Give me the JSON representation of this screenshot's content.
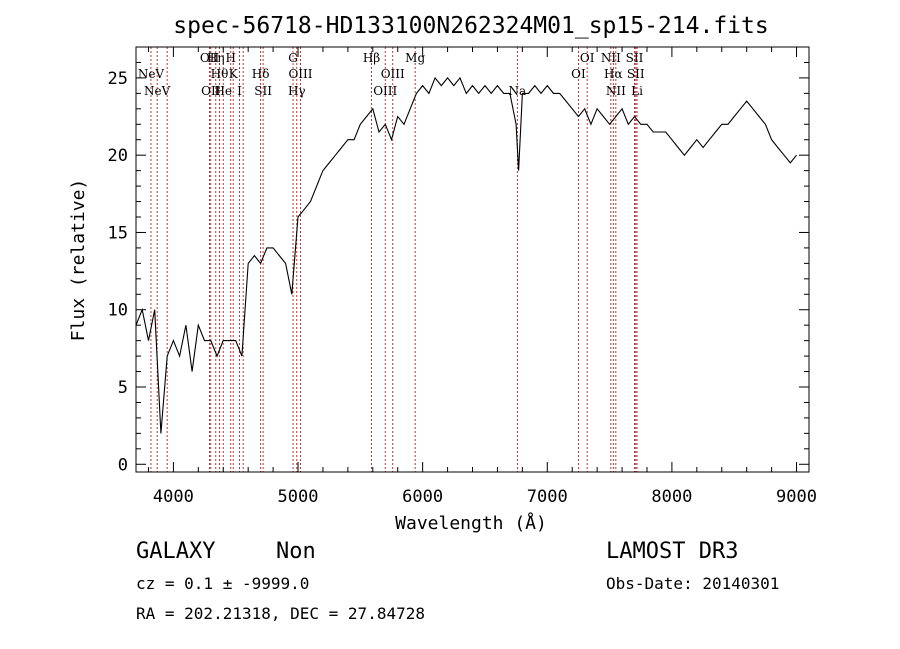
{
  "chart_data": {
    "type": "line",
    "title": "spec-56718-HD133100N262324M01_sp15-214.fits",
    "xlabel": "Wavelength (Å)",
    "ylabel": "Flux (relative)",
    "xlim": [
      3700,
      9100
    ],
    "ylim": [
      -0.5,
      27
    ],
    "x_ticks": [
      4000,
      5000,
      6000,
      7000,
      8000,
      9000
    ],
    "y_ticks": [
      0,
      5,
      10,
      15,
      20,
      25
    ],
    "grid": false,
    "series": [
      {
        "x": [
          3700,
          3750,
          3800,
          3850,
          3900,
          3950,
          4000,
          4050,
          4100,
          4150,
          4200,
          4250,
          4300,
          4350,
          4400,
          4450,
          4500,
          4550,
          4600,
          4650,
          4700,
          4750,
          4800,
          4850,
          4900,
          4950,
          5000,
          5050,
          5100,
          5150,
          5200,
          5250,
          5300,
          5350,
          5400,
          5450,
          5500,
          5550,
          5600,
          5650,
          5700,
          5750,
          5800,
          5850,
          5900,
          5950,
          6000,
          6050,
          6100,
          6150,
          6200,
          6250,
          6300,
          6350,
          6400,
          6450,
          6500,
          6550,
          6600,
          6650,
          6700,
          6750,
          6770,
          6800,
          6850,
          6900,
          6950,
          7000,
          7050,
          7100,
          7150,
          7200,
          7250,
          7300,
          7350,
          7400,
          7450,
          7500,
          7550,
          7600,
          7650,
          7700,
          7750,
          7800,
          7850,
          7900,
          7950,
          8000,
          8050,
          8100,
          8150,
          8200,
          8250,
          8300,
          8350,
          8400,
          8450,
          8500,
          8550,
          8600,
          8650,
          8700,
          8750,
          8800,
          8850,
          8900,
          8950,
          9000
        ],
        "values": [
          9,
          10,
          8,
          10,
          2,
          7,
          8,
          7,
          9,
          6,
          9,
          8,
          8,
          7,
          8,
          8,
          8,
          7,
          13,
          13.5,
          13,
          14,
          14,
          13.5,
          13,
          11,
          16,
          16.5,
          17,
          18,
          19,
          19.5,
          20,
          20.5,
          21,
          21,
          22,
          22.5,
          23,
          21.5,
          22,
          21,
          22.5,
          22,
          23,
          24,
          24.5,
          24,
          25,
          24.5,
          25,
          24.5,
          25,
          24,
          24.5,
          24,
          24.5,
          24,
          24.5,
          24,
          24,
          22,
          19,
          24,
          24,
          24.5,
          24,
          24.5,
          24,
          24,
          23.5,
          23,
          22.5,
          23,
          22,
          23,
          22.5,
          22,
          22.5,
          23,
          22,
          22.5,
          22,
          22,
          21.5,
          21.5,
          21.5,
          21,
          20.5,
          20,
          20.5,
          21,
          20.5,
          21,
          21.5,
          22,
          22,
          22.5,
          23,
          23.5,
          23,
          22.5,
          22,
          21,
          20.5,
          20,
          19.5,
          20
        ]
      }
    ],
    "lines": [
      {
        "x": 3820,
        "label": "NeV",
        "row": 1
      },
      {
        "x": 3870,
        "label": "NeV",
        "row": 2
      },
      {
        "x": 3950,
        "label": "",
        "row": 0
      },
      {
        "x": 4290,
        "label": "OII",
        "row": 0
      },
      {
        "x": 4300,
        "label": "OII",
        "row": 2
      },
      {
        "x": 4340,
        "label": "Hη",
        "row": 0
      },
      {
        "x": 4370,
        "label": "Hθ",
        "row": 1
      },
      {
        "x": 4400,
        "label": "He",
        "row": 2
      },
      {
        "x": 4460,
        "label": "H",
        "row": 0
      },
      {
        "x": 4480,
        "label": "K",
        "row": 1
      },
      {
        "x": 4530,
        "label": "I",
        "row": 2
      },
      {
        "x": 4560,
        "label": "",
        "row": 0
      },
      {
        "x": 4700,
        "label": "Hδ",
        "row": 1
      },
      {
        "x": 4720,
        "label": "SII",
        "row": 2
      },
      {
        "x": 4960,
        "label": "G",
        "row": 0
      },
      {
        "x": 4990,
        "label": "Hγ",
        "row": 2
      },
      {
        "x": 5020,
        "label": "OIII",
        "row": 1
      },
      {
        "x": 5590,
        "label": "Hβ",
        "row": 0
      },
      {
        "x": 5700,
        "label": "OIII",
        "row": 2
      },
      {
        "x": 5760,
        "label": "OIII",
        "row": 1
      },
      {
        "x": 5940,
        "label": "Mg",
        "row": 0
      },
      {
        "x": 6760,
        "label": "Na",
        "row": 2
      },
      {
        "x": 7250,
        "label": "OI",
        "row": 1
      },
      {
        "x": 7320,
        "label": "OI",
        "row": 0
      },
      {
        "x": 7510,
        "label": "NII",
        "row": 0
      },
      {
        "x": 7530,
        "label": "Hα",
        "row": 1
      },
      {
        "x": 7550,
        "label": "NII",
        "row": 2
      },
      {
        "x": 7700,
        "label": "SII",
        "row": 0
      },
      {
        "x": 7710,
        "label": "SII",
        "row": 1
      },
      {
        "x": 7720,
        "label": "Li",
        "row": 2
      }
    ]
  },
  "info": {
    "object_class": "GALAXY",
    "subclass": "Non",
    "survey": "LAMOST DR3",
    "cz": "cz = 0.1 ± -9999.0",
    "obs_date": "Obs-Date: 20140301",
    "radec": "RA = 202.21318, DEC =  27.84728"
  },
  "colors": {
    "spectrum": "#000000",
    "line_marker": "#b02020"
  }
}
